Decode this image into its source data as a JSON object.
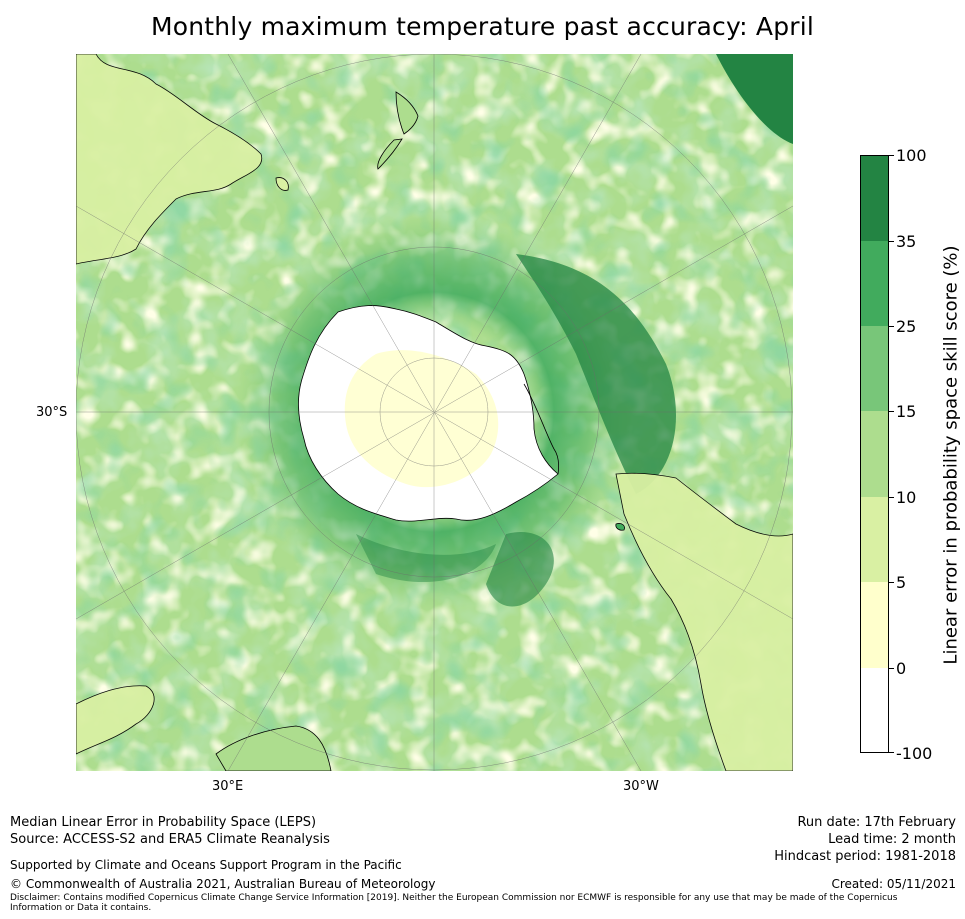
{
  "title": "Monthly maximum temperature past accuracy: April",
  "map": {
    "lat_labels": [
      "30°S"
    ],
    "lon_labels": [
      "30°E",
      "30°W"
    ],
    "colors": {
      "ocean_dark": "#238443",
      "ocean_mid": "#41ab5d",
      "ocean_light": "#78c679",
      "ocean_pale": "#addd8e",
      "ocean_faint": "#d9f0a3",
      "ocean_cream": "#ffffcc",
      "land_line": "#000000"
    }
  },
  "colorbar": {
    "label": "Linear error in probability space skill score (%)",
    "ticks": [
      "100",
      "35",
      "25",
      "15",
      "10",
      "5",
      "0",
      "-100"
    ],
    "colors": [
      "#238443",
      "#41ab5d",
      "#78c679",
      "#addd8e",
      "#d9f0a3",
      "#ffffcc",
      "#ffffff"
    ]
  },
  "footer": {
    "line1": "Median Linear Error in Probability Space (LEPS)",
    "line2": "Source: ACCESS-S2 and ERA5 Climate Reanalysis",
    "supported": "Supported by Climate and Oceans Support Program in the Pacific",
    "copyright": "© Commonwealth of Australia 2021, Australian Bureau of Meteorology",
    "disclaimer": "Disclaimer: Contains modified Copernicus Climate Change Service Information [2019]. Neither the European Commission nor ECMWF is responsible for any use that may be made of the Copernicus Information or Data it contains.",
    "run_date": "Run date: 17th February",
    "lead_time": "Lead time: 2 month",
    "hindcast": "Hindcast period: 1981-2018",
    "created": "Created: 05/11/2021"
  }
}
